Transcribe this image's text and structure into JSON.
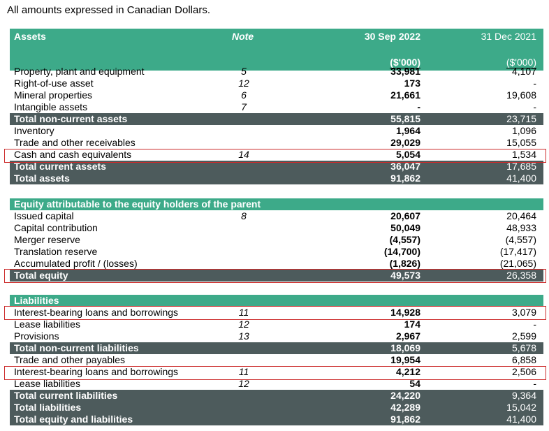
{
  "caption": "All amounts expressed in Canadian Dollars.",
  "header": {
    "assets": "Assets",
    "note": "Note",
    "col1": "30 Sep 2022",
    "col2": "31 Dec 2021",
    "unit1": "($'000)",
    "unit2": "($'000)"
  },
  "assets_rows": [
    {
      "label": "Property, plant and equipment",
      "note": "5",
      "v1": "33,981",
      "v2": "4,107"
    },
    {
      "label": "Right-of-use asset",
      "note": "12",
      "v1": "173",
      "v2": "-"
    },
    {
      "label": "Mineral properties",
      "note": "6",
      "v1": "21,661",
      "v2": "19,608"
    },
    {
      "label": "Intangible assets",
      "note": "7",
      "v1": "-",
      "v2": "-"
    },
    {
      "label": "Total non-current assets",
      "note": "",
      "v1": "55,815",
      "v2": "23,715"
    },
    {
      "label": "Inventory",
      "note": "",
      "v1": "1,964",
      "v2": "1,096"
    },
    {
      "label": "Trade and other receivables",
      "note": "",
      "v1": "29,029",
      "v2": "15,055"
    },
    {
      "label": "Cash and cash equivalents",
      "note": "14",
      "v1": "5,054",
      "v2": "1,534"
    },
    {
      "label": "Total current assets",
      "note": "",
      "v1": "36,047",
      "v2": "17,685"
    },
    {
      "label": "Total assets",
      "note": "",
      "v1": "91,862",
      "v2": "41,400"
    }
  ],
  "equity_title": "Equity attributable to the equity holders of the parent",
  "equity_rows": [
    {
      "label": "Issued capital",
      "note": "8",
      "v1": "20,607",
      "v2": "20,464"
    },
    {
      "label": "Capital contribution",
      "note": "",
      "v1": "50,049",
      "v2": "48,933"
    },
    {
      "label": "Merger reserve",
      "note": "",
      "v1": "(4,557)",
      "v2": "(4,557)"
    },
    {
      "label": "Translation reserve",
      "note": "",
      "v1": "(14,700)",
      "v2": "(17,417)"
    },
    {
      "label": "Accumulated profit / (losses)",
      "note": "",
      "v1": "(1,826)",
      "v2": "(21,065)"
    },
    {
      "label": "Total equity",
      "note": "",
      "v1": "49,573",
      "v2": "26,358"
    }
  ],
  "liabilities_title": "Liabilities",
  "liabilities_rows": [
    {
      "label": "Interest-bearing loans and borrowings",
      "note": "11",
      "v1": "14,928",
      "v2": "3,079"
    },
    {
      "label": "Lease liabilities",
      "note": "12",
      "v1": "174",
      "v2": "-"
    },
    {
      "label": "Provisions",
      "note": "13",
      "v1": "2,967",
      "v2": "2,599"
    },
    {
      "label": "Total non-current liabilities",
      "note": "",
      "v1": "18,069",
      "v2": "5,678"
    },
    {
      "label": "Trade and other payables",
      "note": "",
      "v1": "19,954",
      "v2": "6,858"
    },
    {
      "label": "Interest-bearing loans and borrowings",
      "note": "11",
      "v1": "4,212",
      "v2": "2,506"
    },
    {
      "label": "Lease liabilities",
      "note": "12",
      "v1": "54",
      "v2": "-"
    },
    {
      "label": "Total current liabilities",
      "note": "",
      "v1": "24,220",
      "v2": "9,364"
    },
    {
      "label": "Total liabilities",
      "note": "",
      "v1": "42,289",
      "v2": "15,042"
    },
    {
      "label": "Total equity and liabilities",
      "note": "",
      "v1": "91,862",
      "v2": "41,400"
    }
  ],
  "colors": {
    "header_green": "#3daa89",
    "total_band": "#4d5b5c",
    "highlight_box": "#cc2b2b"
  }
}
